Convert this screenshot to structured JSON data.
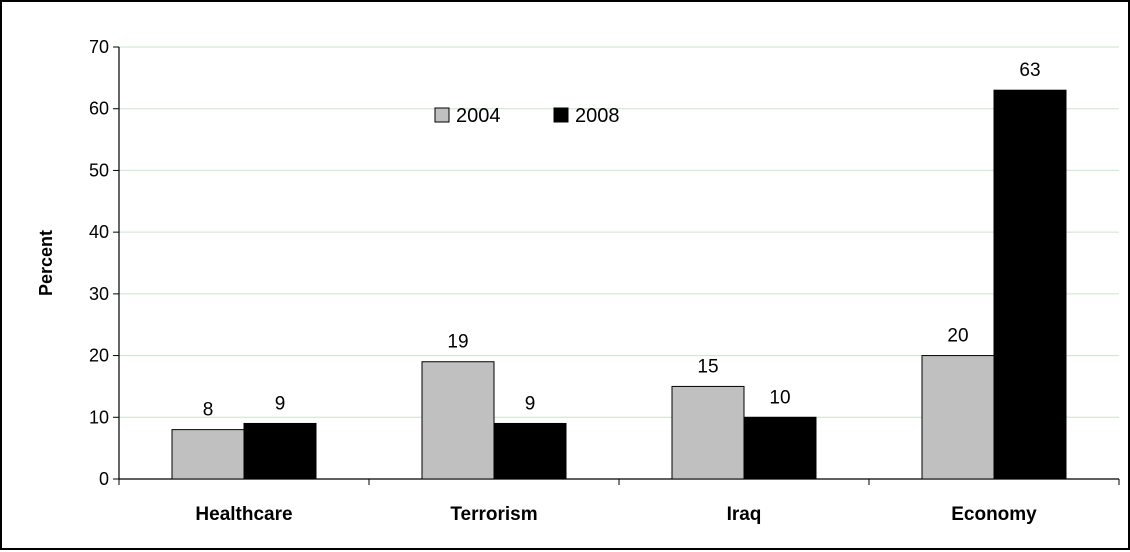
{
  "chart_data": {
    "type": "bar",
    "categories": [
      "Healthcare",
      "Terrorism",
      "Iraq",
      "Economy"
    ],
    "series": [
      {
        "name": "2004",
        "values": [
          8,
          19,
          15,
          20
        ],
        "color": "#c0c0c0"
      },
      {
        "name": "2008",
        "values": [
          9,
          9,
          10,
          63
        ],
        "color": "#000000"
      }
    ],
    "title": "",
    "xlabel": "",
    "ylabel": "Percent",
    "ylim": [
      0,
      70
    ],
    "yticks": [
      0,
      10,
      20,
      30,
      40,
      50,
      60,
      70
    ],
    "ytick_labels": [
      "0",
      "10",
      "20",
      "30",
      "40",
      "50",
      "60",
      "70"
    ],
    "grid": true,
    "grid_color": "#c8e6c8",
    "legend_position": "top-center"
  }
}
